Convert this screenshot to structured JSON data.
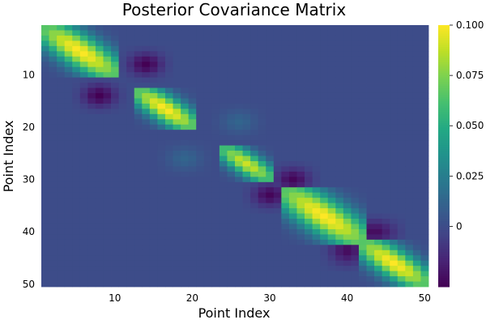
{
  "chart_data": {
    "type": "heatmap",
    "title": "Posterior Covariance Matrix",
    "xlabel": "Point Index",
    "ylabel": "Point Index",
    "xlim": [
      1,
      50
    ],
    "ylim": [
      50,
      1
    ],
    "x_ticks": [
      10,
      20,
      30,
      40,
      50
    ],
    "y_ticks": [
      10,
      20,
      30,
      40,
      50
    ],
    "colorbar": {
      "colormap": "viridis",
      "range": [
        -0.03,
        0.1
      ],
      "ticks": [
        0,
        0.025,
        0.05,
        0.075,
        0.1
      ],
      "tick_labels": [
        "0",
        "0.025",
        "0.050",
        "0.075",
        "0.100"
      ]
    },
    "matrix_size": 50,
    "blocks": [
      {
        "start": 1,
        "end": 10,
        "peak": 0.1
      },
      {
        "start": 13,
        "end": 20,
        "peak": 0.1
      },
      {
        "start": 24,
        "end": 30,
        "peak": 0.09
      },
      {
        "start": 32,
        "end": 42,
        "peak": 0.1
      },
      {
        "start": 42,
        "end": 50,
        "peak": 0.1
      }
    ],
    "cross_blocks": [
      {
        "rows": [
          12,
          16
        ],
        "cols": [
          6,
          10
        ],
        "value": -0.03
      },
      {
        "rows": [
          24,
          28
        ],
        "cols": [
          17,
          21
        ],
        "value": 0.012
      },
      {
        "rows": [
          31,
          35
        ],
        "cols": [
          28,
          32
        ],
        "value": -0.028
      },
      {
        "rows": [
          38,
          42
        ],
        "cols": [
          41,
          46
        ],
        "value": -0.026
      }
    ],
    "grid": false
  }
}
